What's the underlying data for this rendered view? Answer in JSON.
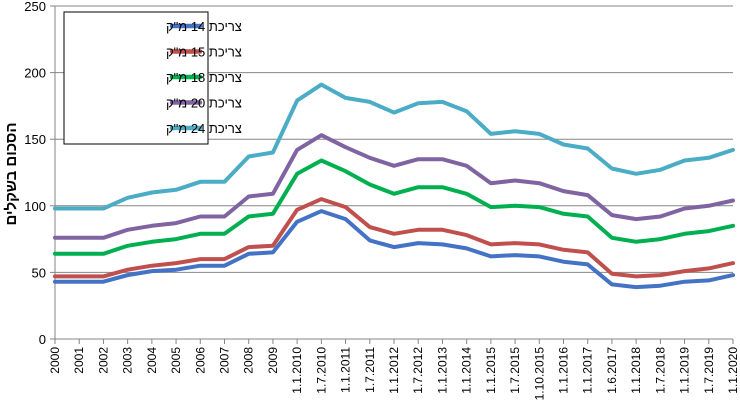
{
  "chart_data": {
    "type": "line",
    "ylabel": "הסכום בשקלים",
    "xlabel": "",
    "ylim": [
      0,
      250
    ],
    "yticks": [
      0,
      50,
      100,
      150,
      200,
      250
    ],
    "grid": "horizontal",
    "legend_position": "top-left",
    "categories": [
      "2000",
      "2001",
      "2002",
      "2003",
      "2004",
      "2005",
      "2006",
      "2007",
      "2008",
      "2009",
      "1.1.2010",
      "1.7.2010",
      "1.1.2011",
      "1.7.2011",
      "1.1.2012",
      "1.7.2012",
      "1.1.2013",
      "1.1.2014",
      "1.1.2015",
      "1.7.2015",
      "1.10.2015",
      "1.1.2016",
      "1.1.2017",
      "1.6.2017",
      "1.1.2018",
      "1.7.2018",
      "1.1.2019",
      "1.7.2019",
      "1.1.2020"
    ],
    "series": [
      {
        "name": "צריכת 14 מ\"ק",
        "color": "#4472c4",
        "values": [
          43,
          43,
          43,
          48,
          51,
          52,
          55,
          55,
          64,
          65,
          88,
          96,
          90,
          74,
          69,
          72,
          71,
          68,
          62,
          63,
          62,
          58,
          56,
          41,
          39,
          40,
          43,
          44,
          48
        ]
      },
      {
        "name": "צריכת 15 מ\"ק",
        "color": "#c0504d",
        "values": [
          47,
          47,
          47,
          52,
          55,
          57,
          60,
          60,
          69,
          70,
          97,
          105,
          99,
          84,
          79,
          82,
          82,
          78,
          71,
          72,
          71,
          67,
          65,
          49,
          47,
          48,
          51,
          53,
          57
        ]
      },
      {
        "name": "צריכת 18 מ\"ק",
        "color": "#00b050",
        "values": [
          64,
          64,
          64,
          70,
          73,
          75,
          79,
          79,
          92,
          94,
          124,
          134,
          126,
          116,
          109,
          114,
          114,
          109,
          99,
          100,
          99,
          94,
          92,
          76,
          73,
          75,
          79,
          81,
          85
        ]
      },
      {
        "name": "צריכת 20 מ\"ק",
        "color": "#8064a2",
        "values": [
          76,
          76,
          76,
          82,
          85,
          87,
          92,
          92,
          107,
          109,
          142,
          153,
          144,
          136,
          130,
          135,
          135,
          130,
          117,
          119,
          117,
          111,
          108,
          93,
          90,
          92,
          98,
          100,
          104
        ]
      },
      {
        "name": "צריכת 24 מ\"ק",
        "color": "#4bacc6",
        "values": [
          98,
          98,
          98,
          106,
          110,
          112,
          118,
          118,
          137,
          140,
          179,
          191,
          181,
          178,
          170,
          177,
          178,
          171,
          154,
          156,
          154,
          146,
          143,
          128,
          124,
          127,
          134,
          136,
          142
        ]
      }
    ]
  }
}
